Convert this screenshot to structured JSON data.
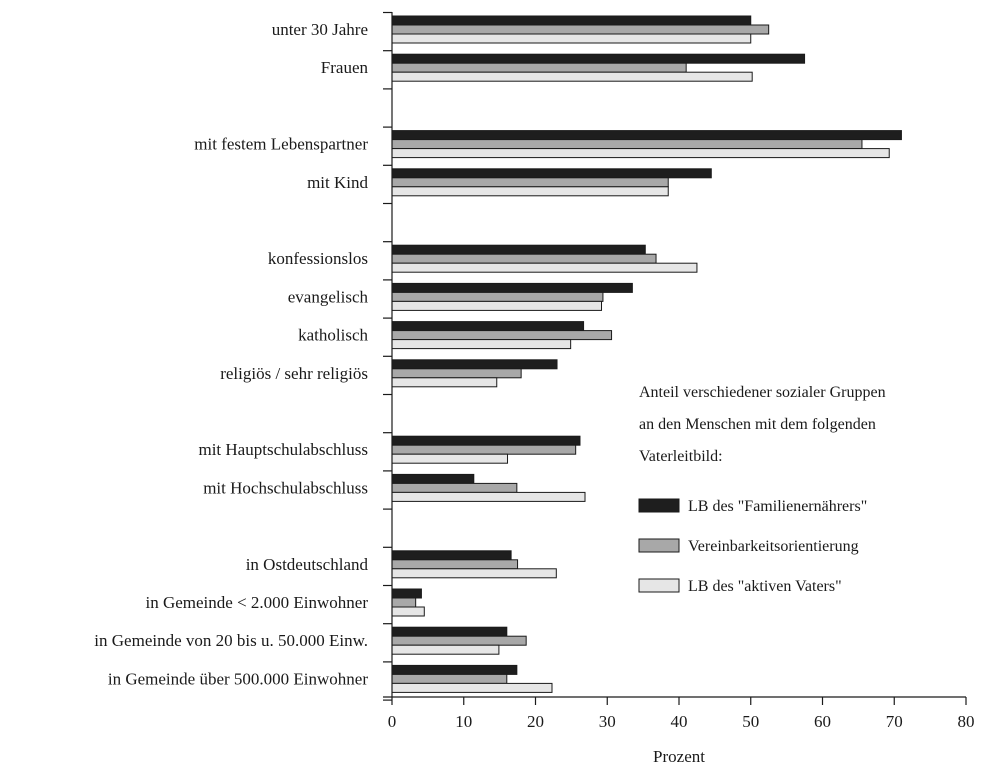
{
  "chart_data": {
    "type": "bar",
    "orientation": "horizontal",
    "title": "",
    "xlabel": "Prozent",
    "ylabel": "",
    "xlim": [
      0,
      80
    ],
    "xticks": [
      "0",
      "10",
      "20",
      "30",
      "40",
      "50",
      "60",
      "70",
      "80"
    ],
    "grid": false,
    "legend_position": "right",
    "legend_title": [
      "Anteil verschiedener sozialer Gruppen",
      "an den Menschen mit dem folgenden",
      "Vaterleitbild:"
    ],
    "categories": [
      "unter 30 Jahre",
      "Frauen",
      "",
      "mit festem Lebenspartner",
      "mit Kind",
      "",
      "konfessionslos",
      "evangelisch",
      "katholisch",
      "religiös / sehr religiös",
      "",
      "mit Hauptschulabschluss",
      "mit Hochschulabschluss",
      "",
      "in Ostdeutschland",
      "in Gemeinde < 2.000 Einwohner",
      "in Gemeinde von 20 bis u. 50.000 Einw.",
      "in Gemeinde über 500.000 Einwohner"
    ],
    "series": [
      {
        "name": "LB des \"Familienernährers\"",
        "color": "#1e1e1e",
        "values": [
          50,
          57.5,
          null,
          71,
          44.5,
          null,
          35.3,
          33.5,
          26.7,
          23,
          null,
          26.2,
          11.4,
          null,
          16.6,
          4.1,
          16,
          17.4
        ]
      },
      {
        "name": "Vereinbarkeitsorientierung",
        "color": "#a8a8a8",
        "values": [
          52.5,
          41,
          null,
          65.5,
          38.5,
          null,
          36.8,
          29.4,
          30.6,
          18,
          null,
          25.6,
          17.4,
          null,
          17.5,
          3.3,
          18.7,
          16
        ]
      },
      {
        "name": "LB des \"aktiven Vaters\"",
        "color": "#e6e6e6",
        "values": [
          50,
          50.2,
          null,
          69.3,
          38.5,
          null,
          42.5,
          29.2,
          24.9,
          14.6,
          null,
          16.1,
          26.9,
          null,
          22.9,
          4.5,
          14.9,
          22.3
        ]
      }
    ]
  }
}
